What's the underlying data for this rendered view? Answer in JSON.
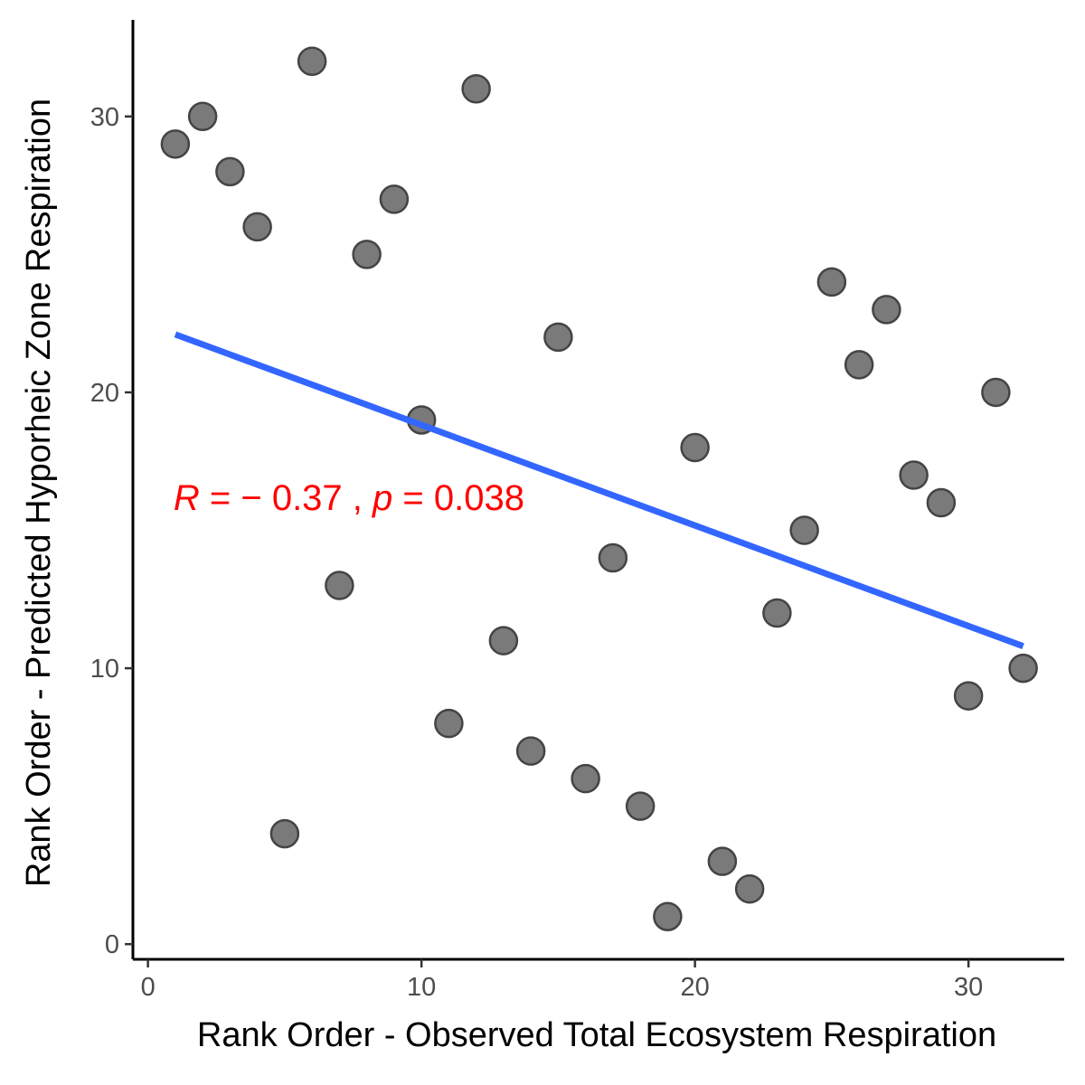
{
  "chart_data": {
    "type": "scatter",
    "title": "",
    "xlabel": "Rank Order - Observed Total Ecosystem Respiration",
    "ylabel": "Rank Order - Predicted Hyporheic Zone Respiration",
    "xlim": [
      -0.55,
      33.5
    ],
    "ylim": [
      -0.55,
      33.5
    ],
    "x_ticks": [
      0,
      10,
      20,
      30
    ],
    "y_ticks": [
      0,
      10,
      20,
      30
    ],
    "grid": false,
    "legend": "none",
    "points": [
      {
        "x": 1,
        "y": 29
      },
      {
        "x": 2,
        "y": 30
      },
      {
        "x": 3,
        "y": 28
      },
      {
        "x": 4,
        "y": 26
      },
      {
        "x": 5,
        "y": 4
      },
      {
        "x": 6,
        "y": 32
      },
      {
        "x": 7,
        "y": 13
      },
      {
        "x": 8,
        "y": 25
      },
      {
        "x": 9,
        "y": 27
      },
      {
        "x": 10,
        "y": 19
      },
      {
        "x": 11,
        "y": 8
      },
      {
        "x": 12,
        "y": 31
      },
      {
        "x": 13,
        "y": 11
      },
      {
        "x": 14,
        "y": 7
      },
      {
        "x": 15,
        "y": 22
      },
      {
        "x": 16,
        "y": 6
      },
      {
        "x": 17,
        "y": 14
      },
      {
        "x": 18,
        "y": 5
      },
      {
        "x": 19,
        "y": 1
      },
      {
        "x": 20,
        "y": 18
      },
      {
        "x": 21,
        "y": 3
      },
      {
        "x": 22,
        "y": 2
      },
      {
        "x": 23,
        "y": 12
      },
      {
        "x": 24,
        "y": 15
      },
      {
        "x": 25,
        "y": 24
      },
      {
        "x": 26,
        "y": 21
      },
      {
        "x": 27,
        "y": 23
      },
      {
        "x": 28,
        "y": 17
      },
      {
        "x": 29,
        "y": 16
      },
      {
        "x": 30,
        "y": 9
      },
      {
        "x": 31,
        "y": 20
      },
      {
        "x": 32,
        "y": 10
      }
    ],
    "fit_line": {
      "x": [
        1,
        32
      ],
      "y": [
        22.1,
        10.8
      ]
    },
    "annotation": {
      "r_symbol": "R",
      "r_text": " = − 0.37 , ",
      "p_symbol": "p",
      "p_text": " = 0.038",
      "x": 1,
      "y": 16.2
    },
    "colors": {
      "point_fill": "#7a7a7a",
      "point_stroke": "#444444",
      "fit_line": "#3366ff",
      "annotation": "#ff0000"
    }
  }
}
